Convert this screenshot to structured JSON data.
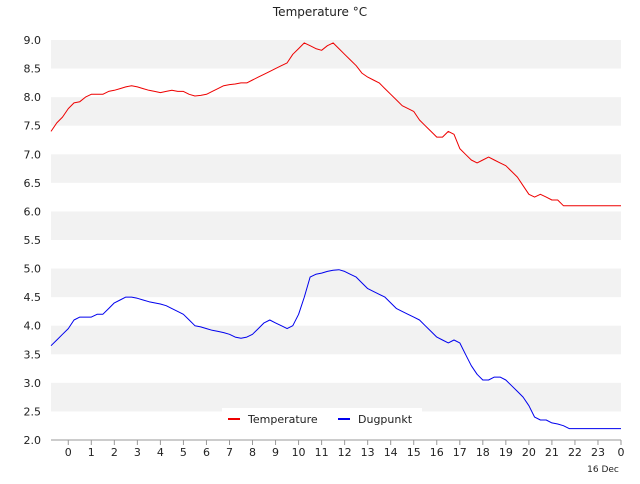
{
  "chart_data": {
    "type": "line",
    "title": "Temperature °C",
    "xlabel": "",
    "ylabel": "",
    "x_tick_labels": [
      "0",
      "1",
      "2",
      "3",
      "4",
      "5",
      "6",
      "7",
      "8",
      "9",
      "10",
      "11",
      "12",
      "13",
      "14",
      "15",
      "16",
      "17",
      "18",
      "19",
      "20",
      "21",
      "22",
      "23",
      "0"
    ],
    "x_secondary_label": "16 Dec",
    "xlim": [
      -0.75,
      24
    ],
    "ylim": [
      2.0,
      9.0
    ],
    "y_ticks": [
      2.0,
      2.5,
      3.0,
      3.5,
      4.0,
      4.5,
      5.0,
      5.5,
      6.0,
      6.5,
      7.0,
      7.5,
      8.0,
      8.5,
      9.0
    ],
    "y_tick_labels": [
      "2.0",
      "2.5",
      "3.0",
      "3.5",
      "4.0",
      "4.5",
      "5.0",
      "5.5",
      "6.0",
      "6.5",
      "7.0",
      "7.5",
      "8.0",
      "8.5",
      "9.0"
    ],
    "grid": "alternating horizontal bands",
    "band_color": "#f2f2f2",
    "legend_position": "bottom-center",
    "series": [
      {
        "name": "Temperature",
        "color": "#ee0000",
        "x": [
          -0.75,
          -0.5,
          -0.25,
          0,
          0.25,
          0.5,
          0.75,
          1,
          1.25,
          1.5,
          1.75,
          2,
          2.25,
          2.5,
          2.75,
          3,
          3.25,
          3.5,
          3.75,
          4,
          4.25,
          4.5,
          4.75,
          5,
          5.25,
          5.5,
          5.75,
          6,
          6.25,
          6.5,
          6.75,
          7,
          7.25,
          7.5,
          7.75,
          8,
          8.25,
          8.5,
          8.75,
          9,
          9.25,
          9.5,
          9.75,
          10,
          10.25,
          10.5,
          10.75,
          11,
          11.25,
          11.5,
          11.75,
          12,
          12.25,
          12.5,
          12.75,
          13,
          13.25,
          13.5,
          13.75,
          14,
          14.25,
          14.5,
          14.75,
          15,
          15.25,
          15.5,
          15.75,
          16,
          16.25,
          16.5,
          16.75,
          17,
          17.25,
          17.5,
          17.75,
          18,
          18.25,
          18.5,
          18.75,
          19,
          19.25,
          19.5,
          19.75,
          20,
          20.25,
          20.5,
          20.75,
          21,
          21.25,
          21.5,
          21.75,
          22,
          22.25,
          22.5,
          22.75,
          23,
          23.25,
          23.5,
          23.75,
          24
        ],
        "values": [
          7.4,
          7.55,
          7.65,
          7.8,
          7.9,
          7.92,
          8.0,
          8.05,
          8.05,
          8.05,
          8.1,
          8.12,
          8.15,
          8.18,
          8.2,
          8.18,
          8.15,
          8.12,
          8.1,
          8.08,
          8.1,
          8.12,
          8.1,
          8.1,
          8.05,
          8.02,
          8.03,
          8.05,
          8.1,
          8.15,
          8.2,
          8.22,
          8.23,
          8.25,
          8.25,
          8.3,
          8.35,
          8.4,
          8.45,
          8.5,
          8.55,
          8.6,
          8.75,
          8.85,
          8.95,
          8.9,
          8.85,
          8.82,
          8.9,
          8.95,
          8.85,
          8.75,
          8.65,
          8.55,
          8.42,
          8.35,
          8.3,
          8.25,
          8.15,
          8.05,
          7.95,
          7.85,
          7.8,
          7.75,
          7.6,
          7.5,
          7.4,
          7.3,
          7.3,
          7.4,
          7.35,
          7.1,
          7.0,
          6.9,
          6.85,
          6.9,
          6.95,
          6.9,
          6.85,
          6.8,
          6.7,
          6.6,
          6.45,
          6.3,
          6.25,
          6.3,
          6.25,
          6.2,
          6.2,
          6.1,
          6.1,
          6.1,
          6.1,
          6.1,
          6.1,
          6.1,
          6.1,
          6.1,
          6.1,
          6.1
        ]
      },
      {
        "name": "Dugpunkt",
        "color": "#0000ee",
        "x": [
          -0.75,
          -0.5,
          -0.25,
          0,
          0.25,
          0.5,
          0.75,
          1,
          1.25,
          1.5,
          1.75,
          2,
          2.25,
          2.5,
          2.75,
          3,
          3.25,
          3.5,
          3.75,
          4,
          4.25,
          4.5,
          4.75,
          5,
          5.25,
          5.5,
          5.75,
          6,
          6.25,
          6.5,
          6.75,
          7,
          7.25,
          7.5,
          7.75,
          8,
          8.25,
          8.5,
          8.75,
          9,
          9.25,
          9.5,
          9.75,
          10,
          10.25,
          10.5,
          10.75,
          11,
          11.25,
          11.5,
          11.75,
          12,
          12.25,
          12.5,
          12.75,
          13,
          13.25,
          13.5,
          13.75,
          14,
          14.25,
          14.5,
          14.75,
          15,
          15.25,
          15.5,
          15.75,
          16,
          16.25,
          16.5,
          16.75,
          17,
          17.25,
          17.5,
          17.75,
          18,
          18.25,
          18.5,
          18.75,
          19,
          19.25,
          19.5,
          19.75,
          20,
          20.25,
          20.5,
          20.75,
          21,
          21.25,
          21.5,
          21.75,
          22,
          22.25,
          22.5,
          22.75,
          23,
          23.25,
          23.5,
          23.75,
          24
        ],
        "values": [
          3.65,
          3.75,
          3.85,
          3.95,
          4.1,
          4.15,
          4.15,
          4.15,
          4.2,
          4.2,
          4.3,
          4.4,
          4.45,
          4.5,
          4.5,
          4.48,
          4.45,
          4.42,
          4.4,
          4.38,
          4.35,
          4.3,
          4.25,
          4.2,
          4.1,
          4.0,
          3.98,
          3.95,
          3.92,
          3.9,
          3.88,
          3.85,
          3.8,
          3.78,
          3.8,
          3.85,
          3.95,
          4.05,
          4.1,
          4.05,
          4.0,
          3.95,
          4.0,
          4.2,
          4.5,
          4.85,
          4.9,
          4.92,
          4.95,
          4.97,
          4.98,
          4.95,
          4.9,
          4.85,
          4.75,
          4.65,
          4.6,
          4.55,
          4.5,
          4.4,
          4.3,
          4.25,
          4.2,
          4.15,
          4.1,
          4.0,
          3.9,
          3.8,
          3.75,
          3.7,
          3.75,
          3.7,
          3.5,
          3.3,
          3.15,
          3.05,
          3.05,
          3.1,
          3.1,
          3.05,
          2.95,
          2.85,
          2.75,
          2.6,
          2.4,
          2.35,
          2.35,
          2.3,
          2.28,
          2.25,
          2.2,
          2.2,
          2.2,
          2.2,
          2.2,
          2.2,
          2.2,
          2.2,
          2.2,
          2.2
        ]
      }
    ]
  }
}
